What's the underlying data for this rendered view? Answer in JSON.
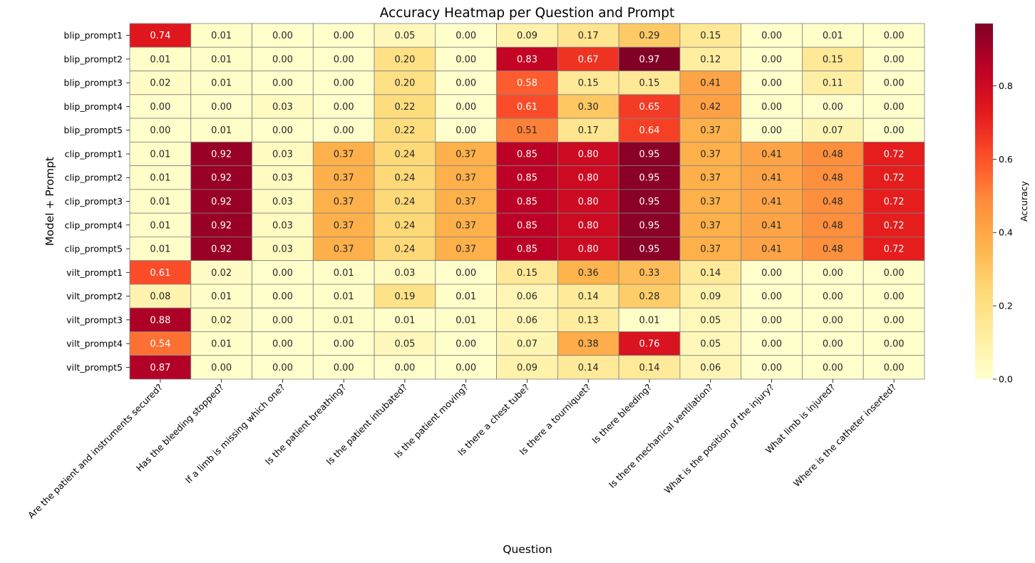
{
  "chart_data": {
    "type": "heatmap",
    "title": "Accuracy Heatmap per Question and Prompt",
    "xlabel": "Question",
    "ylabel": "Model + Prompt",
    "colorbar_label": "Accuracy",
    "colorbar_range": [
      0.0,
      0.97
    ],
    "colorbar_ticks": [
      "0.0",
      "0.2",
      "0.4",
      "0.6",
      "0.8"
    ],
    "colormap": "YlOrRd",
    "grid_line_color": "#808080",
    "columns": [
      "Are the patient and instruments secured?",
      "Has the bleeding stopped?",
      "If a limb is missing which one?",
      "Is the patient breathing?",
      "Is the patient intubated?",
      "Is the patient moving?",
      "Is there a chest tube?",
      "Is there a tourniquet?",
      "Is there bleeding?",
      "Is there mechanical ventilation?",
      "What is the position of the injury?",
      "What limb is injured?",
      "Where is the catheter inserted?"
    ],
    "rows": [
      "blip_prompt1",
      "blip_prompt2",
      "blip_prompt3",
      "blip_prompt4",
      "blip_prompt5",
      "clip_prompt1",
      "clip_prompt2",
      "clip_prompt3",
      "clip_prompt4",
      "clip_prompt5",
      "vilt_prompt1",
      "vilt_prompt2",
      "vilt_prompt3",
      "vilt_prompt4",
      "vilt_prompt5"
    ],
    "values": [
      [
        0.74,
        0.01,
        0.0,
        0.0,
        0.05,
        0.0,
        0.09,
        0.17,
        0.29,
        0.15,
        0.0,
        0.01,
        0.0
      ],
      [
        0.01,
        0.01,
        0.0,
        0.0,
        0.2,
        0.0,
        0.83,
        0.67,
        0.97,
        0.12,
        0.0,
        0.15,
        0.0
      ],
      [
        0.02,
        0.01,
        0.0,
        0.0,
        0.2,
        0.0,
        0.58,
        0.15,
        0.15,
        0.41,
        0.0,
        0.11,
        0.0
      ],
      [
        0.0,
        0.0,
        0.03,
        0.0,
        0.22,
        0.0,
        0.61,
        0.3,
        0.65,
        0.42,
        0.0,
        0.0,
        0.0
      ],
      [
        0.0,
        0.01,
        0.0,
        0.0,
        0.22,
        0.0,
        0.51,
        0.17,
        0.64,
        0.37,
        0.0,
        0.07,
        0.0
      ],
      [
        0.01,
        0.92,
        0.03,
        0.37,
        0.24,
        0.37,
        0.85,
        0.8,
        0.95,
        0.37,
        0.41,
        0.48,
        0.72
      ],
      [
        0.01,
        0.92,
        0.03,
        0.37,
        0.24,
        0.37,
        0.85,
        0.8,
        0.95,
        0.37,
        0.41,
        0.48,
        0.72
      ],
      [
        0.01,
        0.92,
        0.03,
        0.37,
        0.24,
        0.37,
        0.85,
        0.8,
        0.95,
        0.37,
        0.41,
        0.48,
        0.72
      ],
      [
        0.01,
        0.92,
        0.03,
        0.37,
        0.24,
        0.37,
        0.85,
        0.8,
        0.95,
        0.37,
        0.41,
        0.48,
        0.72
      ],
      [
        0.01,
        0.92,
        0.03,
        0.37,
        0.24,
        0.37,
        0.85,
        0.8,
        0.95,
        0.37,
        0.41,
        0.48,
        0.72
      ],
      [
        0.61,
        0.02,
        0.0,
        0.01,
        0.03,
        0.0,
        0.15,
        0.36,
        0.33,
        0.14,
        0.0,
        0.0,
        0.0
      ],
      [
        0.08,
        0.01,
        0.0,
        0.01,
        0.19,
        0.01,
        0.06,
        0.14,
        0.28,
        0.09,
        0.0,
        0.0,
        0.0
      ],
      [
        0.88,
        0.02,
        0.0,
        0.01,
        0.01,
        0.01,
        0.06,
        0.13,
        0.01,
        0.05,
        0.0,
        0.0,
        0.0
      ],
      [
        0.54,
        0.01,
        0.0,
        0.0,
        0.05,
        0.0,
        0.07,
        0.38,
        0.76,
        0.05,
        0.0,
        0.0,
        0.0
      ],
      [
        0.87,
        0.0,
        0.0,
        0.0,
        0.0,
        0.0,
        0.09,
        0.14,
        0.14,
        0.06,
        0.0,
        0.0,
        0.0
      ]
    ],
    "annotation_format": "2 decimals",
    "grid": true,
    "legend": "colorbar-right"
  }
}
